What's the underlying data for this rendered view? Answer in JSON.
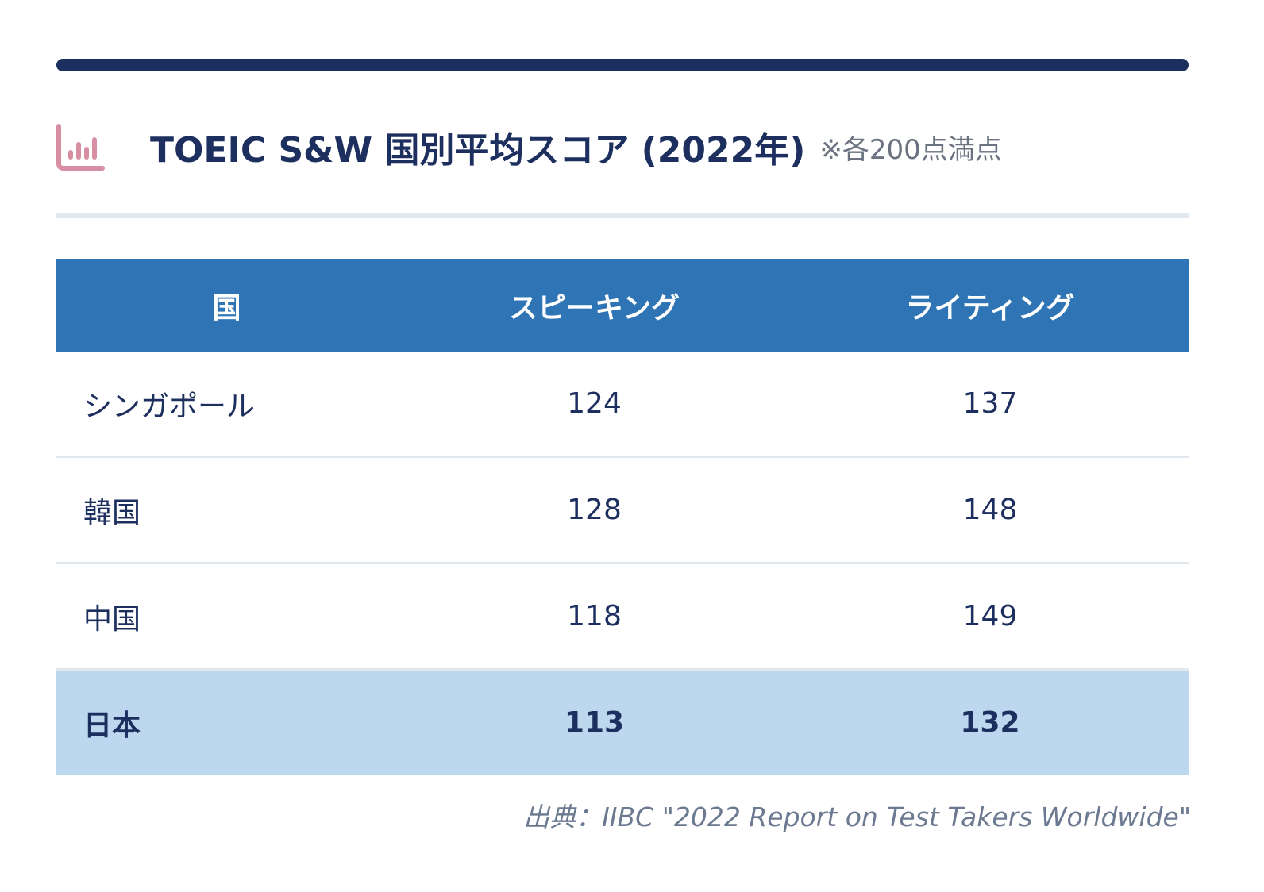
{
  "title": "TOEIC S&W 国別平均スコア (2022年)",
  "note": "※各200点満点",
  "icon": "bar-chart-icon",
  "colors": {
    "primary": "#1d2f5e",
    "header": "#2f75b5",
    "highlight": "#bdd7ee",
    "icon": "#d88fa3"
  },
  "table": {
    "headers": [
      "国",
      "スピーキング",
      "ライティング"
    ],
    "rows": [
      [
        "シンガポール",
        "124",
        "137"
      ],
      [
        "韓国",
        "128",
        "148"
      ],
      [
        "中国",
        "118",
        "149"
      ],
      [
        "日本",
        "113",
        "132"
      ]
    ],
    "highlight_row": 3
  },
  "source": "出典：IIBC \"2022 Report on Test Takers Worldwide\""
}
